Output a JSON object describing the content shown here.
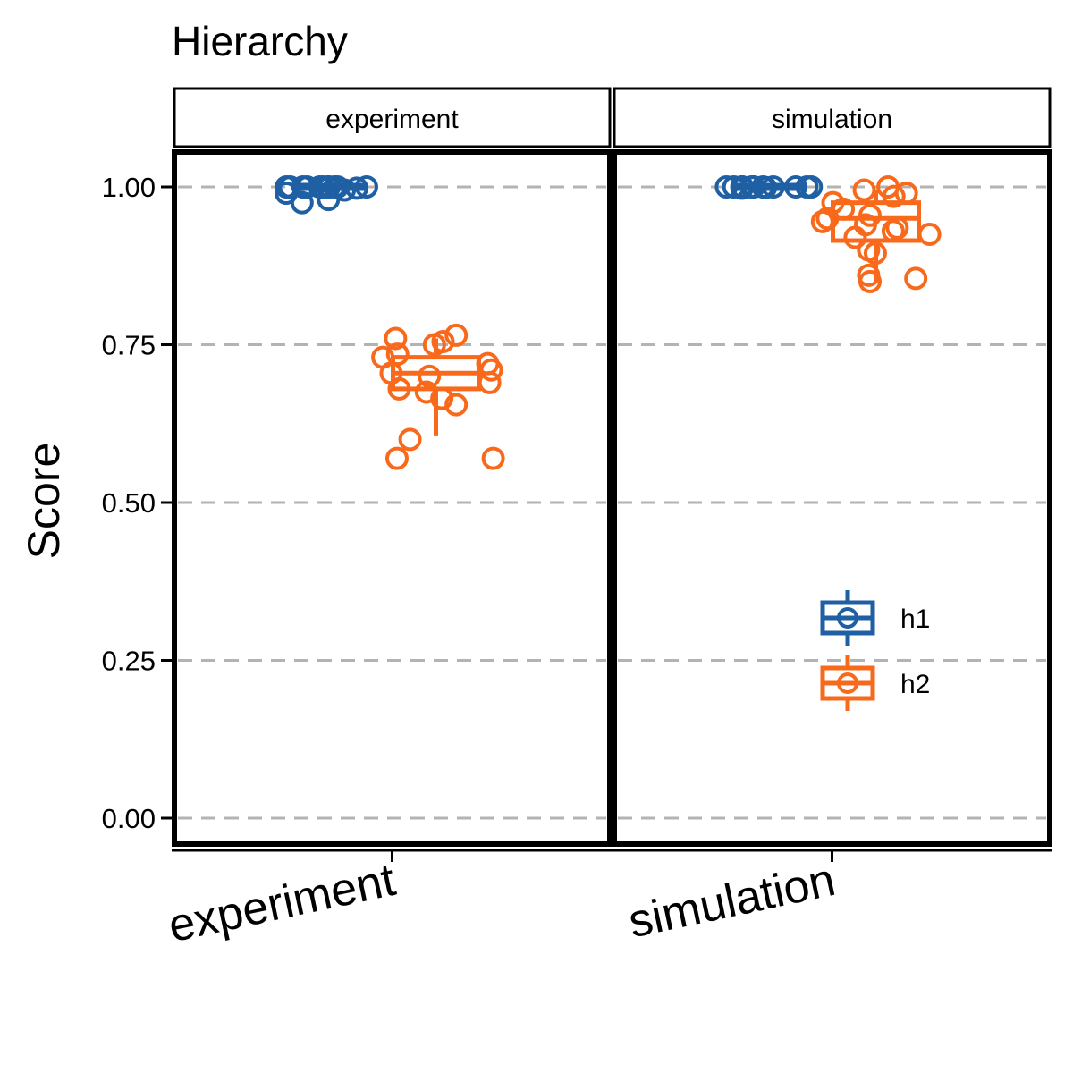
{
  "chart_data": {
    "type": "box",
    "title": "Hierarchy",
    "ylabel": "Score",
    "xlabel": "",
    "ylim": [
      0,
      1
    ],
    "yticks": [
      0,
      0.25,
      0.5,
      0.75,
      1
    ],
    "ytick_labels": [
      "0.00",
      "0.25",
      "0.50",
      "0.75",
      "1.00"
    ],
    "grid": "horizontal dashed",
    "legend_position": "inside-bottom-right",
    "colors": {
      "h1": "#1f5fa3",
      "h2": "#f8691c"
    },
    "series": [
      {
        "name": "h1"
      },
      {
        "name": "h2"
      }
    ],
    "facets": [
      {
        "strip": "experiment",
        "x_label": "experiment",
        "groups": [
          {
            "series": "h1",
            "box": {
              "min": 0.985,
              "q1": 0.995,
              "median": 1.0,
              "q3": 1.0,
              "max": 1.0
            },
            "points": [
              1.0,
              1.0,
              1.0,
              1.0,
              1.0,
              1.0,
              1.0,
              1.0,
              1.0,
              1.0,
              1.0,
              0.998,
              0.995,
              0.99,
              0.98,
              0.975
            ]
          },
          {
            "series": "h2",
            "box": {
              "min": 0.605,
              "q1": 0.68,
              "median": 0.705,
              "q3": 0.73,
              "max": 0.76
            },
            "points": [
              0.765,
              0.76,
              0.755,
              0.75,
              0.735,
              0.73,
              0.72,
              0.71,
              0.705,
              0.7,
              0.69,
              0.68,
              0.675,
              0.665,
              0.655,
              0.6,
              0.57,
              0.57
            ]
          }
        ]
      },
      {
        "strip": "simulation",
        "x_label": "simulation",
        "groups": [
          {
            "series": "h1",
            "box": {
              "min": 0.995,
              "q1": 0.998,
              "median": 1.0,
              "q3": 1.0,
              "max": 1.0
            },
            "points": [
              1.0,
              1.0,
              1.0,
              1.0,
              1.0,
              1.0,
              1.0,
              1.0,
              1.0,
              1.0,
              1.0,
              1.0,
              0.999,
              0.998
            ]
          },
          {
            "series": "h2",
            "box": {
              "min": 0.85,
              "q1": 0.915,
              "median": 0.95,
              "q3": 0.975,
              "max": 0.995
            },
            "points": [
              1.0,
              0.995,
              0.99,
              0.985,
              0.975,
              0.965,
              0.955,
              0.95,
              0.945,
              0.94,
              0.935,
              0.93,
              0.925,
              0.92,
              0.9,
              0.895,
              0.86,
              0.855,
              0.85
            ]
          }
        ]
      }
    ]
  }
}
